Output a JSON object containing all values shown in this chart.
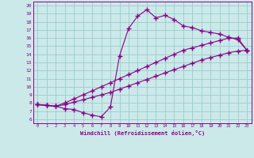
{
  "xlabel": "Windchill (Refroidissement éolien,°C)",
  "xlim": [
    -0.5,
    23.5
  ],
  "ylim": [
    5.5,
    20.5
  ],
  "xticks": [
    0,
    1,
    2,
    3,
    4,
    5,
    6,
    7,
    8,
    9,
    10,
    11,
    12,
    13,
    14,
    15,
    16,
    17,
    18,
    19,
    20,
    21,
    22,
    23
  ],
  "yticks": [
    6,
    7,
    8,
    9,
    10,
    11,
    12,
    13,
    14,
    15,
    16,
    17,
    18,
    19,
    20
  ],
  "bg_color": "#cce9e9",
  "grid_color": "#99cccc",
  "line_color": "#880088",
  "curve1_x": [
    0,
    1,
    2,
    3,
    4,
    5,
    6,
    7,
    8,
    9,
    10,
    11,
    12,
    13,
    14,
    15,
    16,
    17,
    18,
    19,
    20,
    21,
    22,
    23
  ],
  "curve1_y": [
    7.8,
    7.7,
    7.6,
    7.3,
    7.2,
    6.8,
    6.5,
    6.3,
    7.5,
    13.8,
    17.2,
    18.7,
    19.5,
    18.5,
    18.8,
    18.3,
    17.5,
    17.3,
    16.9,
    16.7,
    16.5,
    16.1,
    15.8,
    14.5
  ],
  "curve2_x": [
    0,
    1,
    2,
    3,
    4,
    5,
    6,
    7,
    8,
    9,
    10,
    11,
    12,
    13,
    14,
    15,
    16,
    17,
    18,
    19,
    20,
    21,
    22,
    23
  ],
  "curve2_y": [
    7.8,
    7.7,
    7.6,
    8.0,
    8.5,
    9.0,
    9.5,
    10.0,
    10.5,
    11.0,
    11.5,
    12.0,
    12.5,
    13.0,
    13.5,
    14.0,
    14.5,
    14.8,
    15.1,
    15.4,
    15.7,
    16.0,
    16.0,
    14.5
  ],
  "curve3_x": [
    0,
    1,
    2,
    3,
    4,
    5,
    6,
    7,
    8,
    9,
    10,
    11,
    12,
    13,
    14,
    15,
    16,
    17,
    18,
    19,
    20,
    21,
    22,
    23
  ],
  "curve3_y": [
    7.8,
    7.7,
    7.6,
    7.8,
    8.1,
    8.4,
    8.7,
    9.0,
    9.3,
    9.7,
    10.1,
    10.5,
    10.9,
    11.3,
    11.7,
    12.1,
    12.5,
    12.9,
    13.3,
    13.6,
    13.9,
    14.2,
    14.4,
    14.5
  ],
  "marker": "+",
  "marker_size": 4,
  "line_width": 0.8
}
